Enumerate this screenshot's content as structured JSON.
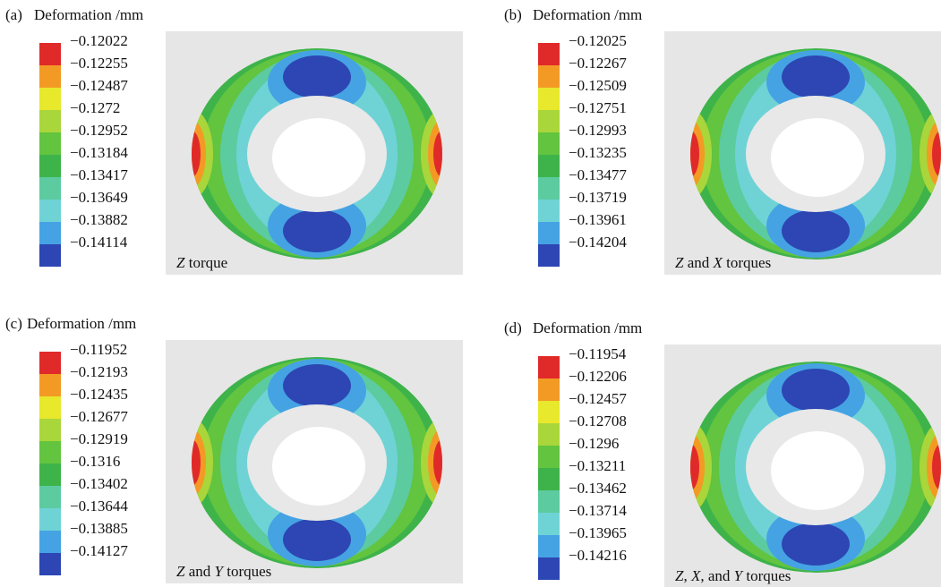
{
  "colorbar_colors": [
    "#e02a2a",
    "#f39a25",
    "#e8e82c",
    "#a9d63a",
    "#62c43f",
    "#3eb34a",
    "#5ccba0",
    "#6fd3d6",
    "#45a3e3",
    "#2d46b3"
  ],
  "panels": [
    {
      "label": "(a)",
      "legend_title": "Deformation /mm",
      "legend_values": [
        "−0.12022",
        "−0.12255",
        "−0.12487",
        "−0.1272",
        "−0.12952",
        "−0.13184",
        "−0.13417",
        "−0.13649",
        "−0.13882",
        "−0.14114"
      ],
      "caption": [
        {
          "text": "Z",
          "italic": true
        },
        {
          "text": " torque",
          "italic": false
        }
      ]
    },
    {
      "label": "(b)",
      "legend_title": "Deformation /mm",
      "legend_values": [
        "−0.12025",
        "−0.12267",
        "−0.12509",
        "−0.12751",
        "−0.12993",
        "−0.13235",
        "−0.13477",
        "−0.13719",
        "−0.13961",
        "−0.14204"
      ],
      "caption": [
        {
          "text": "Z",
          "italic": true
        },
        {
          "text": " and ",
          "italic": false
        },
        {
          "text": "X",
          "italic": true
        },
        {
          "text": " torques",
          "italic": false
        }
      ]
    },
    {
      "label": "(c)",
      "legend_title": "Deformation /mm",
      "legend_values": [
        "−0.11952",
        "−0.12193",
        "−0.12435",
        "−0.12677",
        "−0.12919",
        "−0.1316",
        "−0.13402",
        "−0.13644",
        "−0.13885",
        "−0.14127"
      ],
      "caption": [
        {
          "text": "Z",
          "italic": true
        },
        {
          "text": " and ",
          "italic": false
        },
        {
          "text": "Y",
          "italic": true
        },
        {
          "text": " torques",
          "italic": false
        }
      ]
    },
    {
      "label": "(d)",
      "legend_title": "Deformation /mm",
      "legend_values": [
        "−0.11954",
        "−0.12206",
        "−0.12457",
        "−0.12708",
        "−0.1296",
        "−0.13211",
        "−0.13462",
        "−0.13714",
        "−0.13965",
        "−0.14216"
      ],
      "caption": [
        {
          "text": "Z",
          "italic": true
        },
        {
          "text": ", ",
          "italic": false
        },
        {
          "text": "X",
          "italic": true
        },
        {
          "text": ", and ",
          "italic": false
        },
        {
          "text": "Y",
          "italic": true
        },
        {
          "text": " torques",
          "italic": false
        }
      ]
    }
  ]
}
